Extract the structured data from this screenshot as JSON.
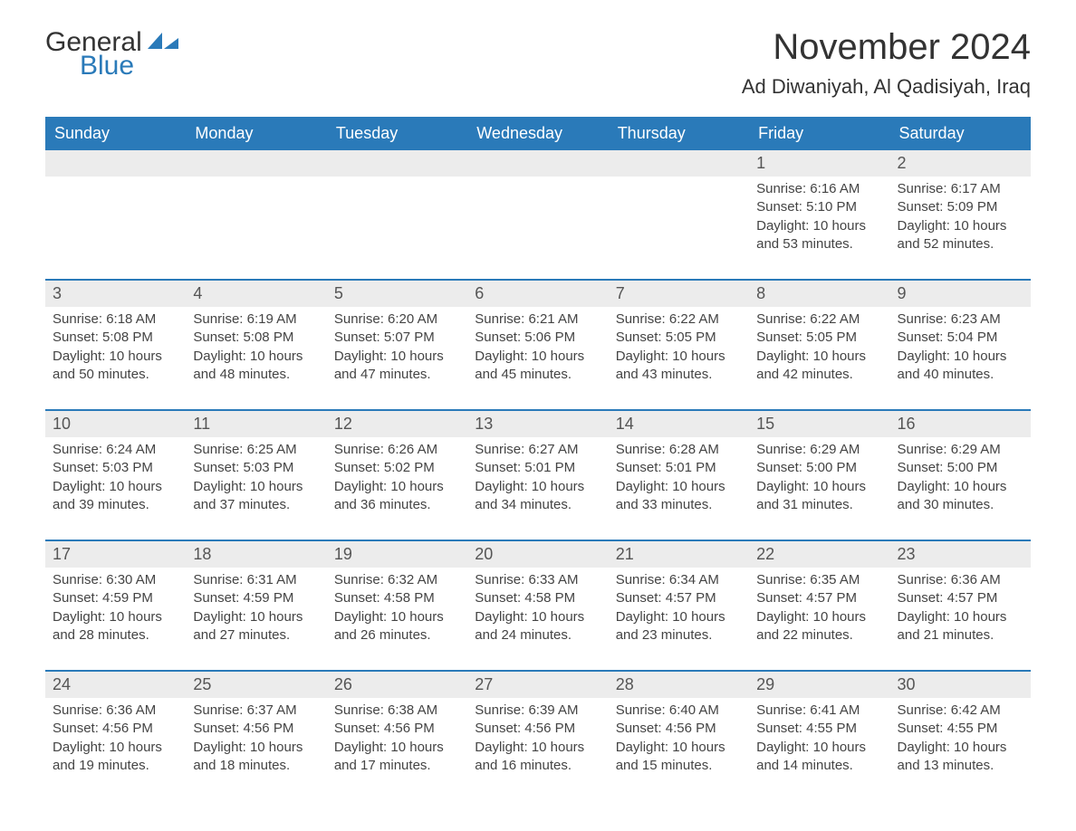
{
  "brand": {
    "part1": "General",
    "part2": "Blue"
  },
  "title": "November 2024",
  "location": "Ad Diwaniyah, Al Qadisiyah, Iraq",
  "colors": {
    "header_bg": "#2a7ab9",
    "header_text": "#ffffff",
    "daynum_bg": "#ececec",
    "row_border": "#2a7ab9",
    "text": "#333333",
    "body_bg": "#ffffff"
  },
  "typography": {
    "title_fontsize": 40,
    "location_fontsize": 22,
    "header_fontsize": 18,
    "cell_fontsize": 15
  },
  "weekdays": [
    "Sunday",
    "Monday",
    "Tuesday",
    "Wednesday",
    "Thursday",
    "Friday",
    "Saturday"
  ],
  "weeks": [
    [
      null,
      null,
      null,
      null,
      null,
      {
        "n": "1",
        "sunrise": "Sunrise: 6:16 AM",
        "sunset": "Sunset: 5:10 PM",
        "daylight": "Daylight: 10 hours and 53 minutes."
      },
      {
        "n": "2",
        "sunrise": "Sunrise: 6:17 AM",
        "sunset": "Sunset: 5:09 PM",
        "daylight": "Daylight: 10 hours and 52 minutes."
      }
    ],
    [
      {
        "n": "3",
        "sunrise": "Sunrise: 6:18 AM",
        "sunset": "Sunset: 5:08 PM",
        "daylight": "Daylight: 10 hours and 50 minutes."
      },
      {
        "n": "4",
        "sunrise": "Sunrise: 6:19 AM",
        "sunset": "Sunset: 5:08 PM",
        "daylight": "Daylight: 10 hours and 48 minutes."
      },
      {
        "n": "5",
        "sunrise": "Sunrise: 6:20 AM",
        "sunset": "Sunset: 5:07 PM",
        "daylight": "Daylight: 10 hours and 47 minutes."
      },
      {
        "n": "6",
        "sunrise": "Sunrise: 6:21 AM",
        "sunset": "Sunset: 5:06 PM",
        "daylight": "Daylight: 10 hours and 45 minutes."
      },
      {
        "n": "7",
        "sunrise": "Sunrise: 6:22 AM",
        "sunset": "Sunset: 5:05 PM",
        "daylight": "Daylight: 10 hours and 43 minutes."
      },
      {
        "n": "8",
        "sunrise": "Sunrise: 6:22 AM",
        "sunset": "Sunset: 5:05 PM",
        "daylight": "Daylight: 10 hours and 42 minutes."
      },
      {
        "n": "9",
        "sunrise": "Sunrise: 6:23 AM",
        "sunset": "Sunset: 5:04 PM",
        "daylight": "Daylight: 10 hours and 40 minutes."
      }
    ],
    [
      {
        "n": "10",
        "sunrise": "Sunrise: 6:24 AM",
        "sunset": "Sunset: 5:03 PM",
        "daylight": "Daylight: 10 hours and 39 minutes."
      },
      {
        "n": "11",
        "sunrise": "Sunrise: 6:25 AM",
        "sunset": "Sunset: 5:03 PM",
        "daylight": "Daylight: 10 hours and 37 minutes."
      },
      {
        "n": "12",
        "sunrise": "Sunrise: 6:26 AM",
        "sunset": "Sunset: 5:02 PM",
        "daylight": "Daylight: 10 hours and 36 minutes."
      },
      {
        "n": "13",
        "sunrise": "Sunrise: 6:27 AM",
        "sunset": "Sunset: 5:01 PM",
        "daylight": "Daylight: 10 hours and 34 minutes."
      },
      {
        "n": "14",
        "sunrise": "Sunrise: 6:28 AM",
        "sunset": "Sunset: 5:01 PM",
        "daylight": "Daylight: 10 hours and 33 minutes."
      },
      {
        "n": "15",
        "sunrise": "Sunrise: 6:29 AM",
        "sunset": "Sunset: 5:00 PM",
        "daylight": "Daylight: 10 hours and 31 minutes."
      },
      {
        "n": "16",
        "sunrise": "Sunrise: 6:29 AM",
        "sunset": "Sunset: 5:00 PM",
        "daylight": "Daylight: 10 hours and 30 minutes."
      }
    ],
    [
      {
        "n": "17",
        "sunrise": "Sunrise: 6:30 AM",
        "sunset": "Sunset: 4:59 PM",
        "daylight": "Daylight: 10 hours and 28 minutes."
      },
      {
        "n": "18",
        "sunrise": "Sunrise: 6:31 AM",
        "sunset": "Sunset: 4:59 PM",
        "daylight": "Daylight: 10 hours and 27 minutes."
      },
      {
        "n": "19",
        "sunrise": "Sunrise: 6:32 AM",
        "sunset": "Sunset: 4:58 PM",
        "daylight": "Daylight: 10 hours and 26 minutes."
      },
      {
        "n": "20",
        "sunrise": "Sunrise: 6:33 AM",
        "sunset": "Sunset: 4:58 PM",
        "daylight": "Daylight: 10 hours and 24 minutes."
      },
      {
        "n": "21",
        "sunrise": "Sunrise: 6:34 AM",
        "sunset": "Sunset: 4:57 PM",
        "daylight": "Daylight: 10 hours and 23 minutes."
      },
      {
        "n": "22",
        "sunrise": "Sunrise: 6:35 AM",
        "sunset": "Sunset: 4:57 PM",
        "daylight": "Daylight: 10 hours and 22 minutes."
      },
      {
        "n": "23",
        "sunrise": "Sunrise: 6:36 AM",
        "sunset": "Sunset: 4:57 PM",
        "daylight": "Daylight: 10 hours and 21 minutes."
      }
    ],
    [
      {
        "n": "24",
        "sunrise": "Sunrise: 6:36 AM",
        "sunset": "Sunset: 4:56 PM",
        "daylight": "Daylight: 10 hours and 19 minutes."
      },
      {
        "n": "25",
        "sunrise": "Sunrise: 6:37 AM",
        "sunset": "Sunset: 4:56 PM",
        "daylight": "Daylight: 10 hours and 18 minutes."
      },
      {
        "n": "26",
        "sunrise": "Sunrise: 6:38 AM",
        "sunset": "Sunset: 4:56 PM",
        "daylight": "Daylight: 10 hours and 17 minutes."
      },
      {
        "n": "27",
        "sunrise": "Sunrise: 6:39 AM",
        "sunset": "Sunset: 4:56 PM",
        "daylight": "Daylight: 10 hours and 16 minutes."
      },
      {
        "n": "28",
        "sunrise": "Sunrise: 6:40 AM",
        "sunset": "Sunset: 4:56 PM",
        "daylight": "Daylight: 10 hours and 15 minutes."
      },
      {
        "n": "29",
        "sunrise": "Sunrise: 6:41 AM",
        "sunset": "Sunset: 4:55 PM",
        "daylight": "Daylight: 10 hours and 14 minutes."
      },
      {
        "n": "30",
        "sunrise": "Sunrise: 6:42 AM",
        "sunset": "Sunset: 4:55 PM",
        "daylight": "Daylight: 10 hours and 13 minutes."
      }
    ]
  ]
}
